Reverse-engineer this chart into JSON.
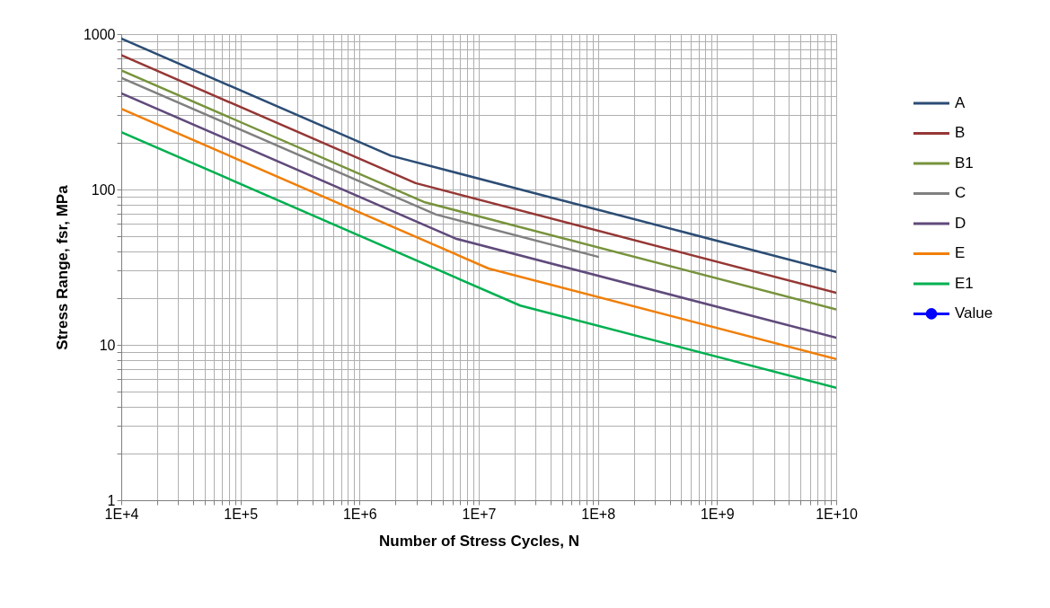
{
  "chart_data": {
    "type": "line",
    "xlabel": "Number of Stress Cycles, N",
    "ylabel": "Stress Range, fsr, MPa",
    "log": "xy",
    "grid": true,
    "legend": "right",
    "xlim": [
      10000,
      10000000000
    ],
    "ylim": [
      1,
      1000
    ],
    "xticks": [
      {
        "value": 10000,
        "label": "1E+4"
      },
      {
        "value": 20000,
        "label": null
      },
      {
        "value": 30000,
        "label": null
      },
      {
        "value": 40000,
        "label": null
      },
      {
        "value": 50000,
        "label": null
      },
      {
        "value": 60000,
        "label": null
      },
      {
        "value": 70000,
        "label": null
      },
      {
        "value": 80000,
        "label": null
      },
      {
        "value": 90000,
        "label": null
      },
      {
        "value": 100000,
        "label": "1E+5"
      },
      {
        "value": 200000,
        "label": null
      },
      {
        "value": 300000,
        "label": null
      },
      {
        "value": 400000,
        "label": null
      },
      {
        "value": 500000,
        "label": null
      },
      {
        "value": 600000,
        "label": null
      },
      {
        "value": 700000,
        "label": null
      },
      {
        "value": 800000,
        "label": null
      },
      {
        "value": 900000,
        "label": null
      },
      {
        "value": 1000000,
        "label": "1E+6"
      },
      {
        "value": 2000000,
        "label": null
      },
      {
        "value": 3000000,
        "label": null
      },
      {
        "value": 4000000,
        "label": null
      },
      {
        "value": 5000000,
        "label": null
      },
      {
        "value": 6000000,
        "label": null
      },
      {
        "value": 7000000,
        "label": null
      },
      {
        "value": 8000000,
        "label": null
      },
      {
        "value": 9000000,
        "label": null
      },
      {
        "value": 10000000,
        "label": "1E+7"
      },
      {
        "value": 20000000,
        "label": null
      },
      {
        "value": 30000000,
        "label": null
      },
      {
        "value": 40000000,
        "label": null
      },
      {
        "value": 50000000,
        "label": null
      },
      {
        "value": 60000000,
        "label": null
      },
      {
        "value": 70000000,
        "label": null
      },
      {
        "value": 80000000,
        "label": null
      },
      {
        "value": 90000000,
        "label": null
      },
      {
        "value": 100000000,
        "label": "1E+8"
      },
      {
        "value": 200000000,
        "label": null
      },
      {
        "value": 300000000,
        "label": null
      },
      {
        "value": 400000000,
        "label": null
      },
      {
        "value": 500000000,
        "label": null
      },
      {
        "value": 600000000,
        "label": null
      },
      {
        "value": 700000000,
        "label": null
      },
      {
        "value": 800000000,
        "label": null
      },
      {
        "value": 900000000,
        "label": null
      },
      {
        "value": 1000000000,
        "label": "1E+9"
      },
      {
        "value": 2000000000,
        "label": null
      },
      {
        "value": 3000000000,
        "label": null
      },
      {
        "value": 4000000000,
        "label": null
      },
      {
        "value": 5000000000,
        "label": null
      },
      {
        "value": 6000000000,
        "label": null
      },
      {
        "value": 7000000000,
        "label": null
      },
      {
        "value": 8000000000,
        "label": null
      },
      {
        "value": 9000000000,
        "label": null
      },
      {
        "value": 10000000000,
        "label": "1E+10"
      }
    ],
    "yticks": [
      1,
      {
        "value": 2,
        "label": null
      },
      {
        "value": 3,
        "label": null
      },
      {
        "value": 4,
        "label": null
      },
      {
        "value": 5,
        "label": null
      },
      {
        "value": 6,
        "label": null
      },
      {
        "value": 7,
        "label": null
      },
      {
        "value": 8,
        "label": null
      },
      {
        "value": 9,
        "label": null
      },
      10,
      {
        "value": 20,
        "label": null
      },
      {
        "value": 30,
        "label": null
      },
      {
        "value": 40,
        "label": null
      },
      {
        "value": 50,
        "label": null
      },
      {
        "value": 60,
        "label": null
      },
      {
        "value": 70,
        "label": null
      },
      {
        "value": 80,
        "label": null
      },
      {
        "value": 90,
        "label": null
      },
      100,
      {
        "value": 200,
        "label": null
      },
      {
        "value": 300,
        "label": null
      },
      {
        "value": 400,
        "label": null
      },
      {
        "value": 500,
        "label": null
      },
      {
        "value": 600,
        "label": null
      },
      {
        "value": 700,
        "label": null
      },
      {
        "value": 800,
        "label": null
      },
      {
        "value": 900,
        "label": null
      },
      1000
    ],
    "series": [
      {
        "name": "A",
        "color": "#2c4d75",
        "x": [
          10000,
          1830000,
          10000000000
        ],
        "values": [
          936,
          165,
          29.5
        ]
      },
      {
        "name": "B",
        "color": "#953735",
        "x": [
          10000,
          2950000,
          10000000000
        ],
        "values": [
          732,
          110,
          21.6
        ]
      },
      {
        "name": "B1",
        "color": "#77933c",
        "x": [
          10000,
          3540000,
          10000000000
        ],
        "values": [
          585,
          82.7,
          16.9
        ]
      },
      {
        "name": "C",
        "color": "#808080",
        "x": [
          10000,
          4380000,
          100000000
        ],
        "values": [
          524,
          69,
          36.9
        ]
      },
      {
        "name": "D",
        "color": "#604a7b",
        "x": [
          10000,
          6400000,
          10000000000
        ],
        "values": [
          416,
          48.3,
          11.1
        ]
      },
      {
        "name": "E",
        "color": "#f07f09",
        "x": [
          10000,
          12100000,
          10000000000
        ],
        "values": [
          331,
          31,
          8.1
        ]
      },
      {
        "name": "E1",
        "color": "#00b050",
        "x": [
          10000,
          22300000,
          10000000000
        ],
        "values": [
          234,
          17.9,
          5.3
        ]
      },
      {
        "name": "Value",
        "color": "#0000ff",
        "marker": "circle"
      }
    ]
  }
}
